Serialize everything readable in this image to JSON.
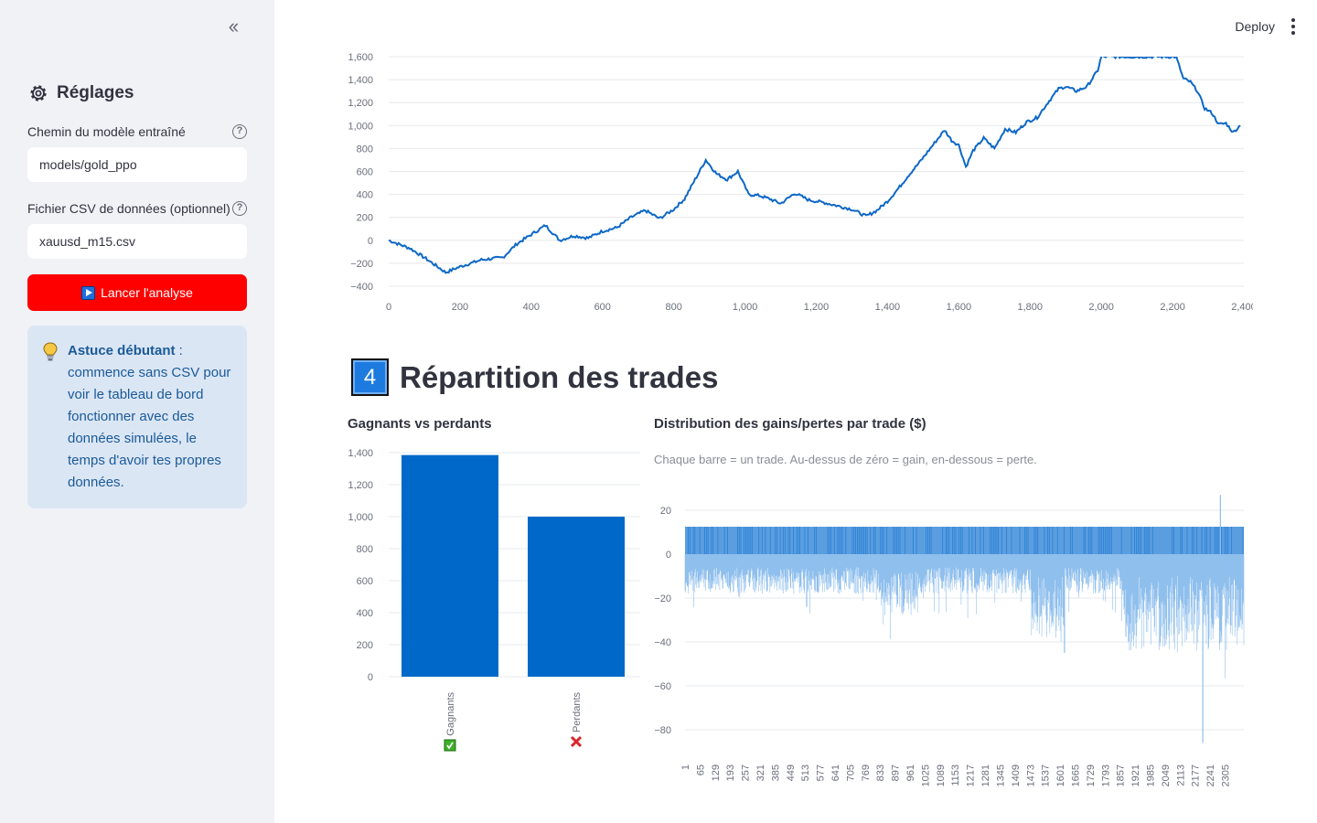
{
  "sidebar": {
    "title": "Réglages",
    "model_label": "Chemin du modèle entraîné",
    "model_value": "models/gold_ppo",
    "csv_label": "Fichier CSV de données (optionnel)",
    "csv_value": "xauusd_m15.csv",
    "run_button": "Lancer l'analyse",
    "tip_bold": "Astuce débutant",
    "tip_text": " : commence sans CSV pour voir le tableau de bord fonctionner avec des données simulées, le temps d'avoir tes propres données."
  },
  "topbar": {
    "deploy_label": "Deploy"
  },
  "section": {
    "number": "4",
    "title": "Répartition des trades"
  },
  "equity_chart": {
    "y_ticks": [
      "1,600",
      "1,400",
      "1,200",
      "1,000",
      "800",
      "600",
      "400",
      "200",
      "0",
      "−200",
      "−400"
    ],
    "x_ticks": [
      "0",
      "200",
      "400",
      "600",
      "800",
      "1,000",
      "1,200",
      "1,400",
      "1,600",
      "1,800",
      "2,000",
      "2,200",
      "2,400"
    ]
  },
  "win_loss": {
    "title": "Gagnants vs perdants",
    "y_ticks": [
      "1,400",
      "1,200",
      "1,000",
      "800",
      "600",
      "400",
      "200",
      "0"
    ],
    "categories": [
      "Gagnants",
      "Perdants"
    ]
  },
  "distribution": {
    "title": "Distribution des gains/pertes par trade ($)",
    "caption": "Chaque barre = un trade. Au-dessus de zéro = gain, en-dessous = perte.",
    "y_ticks": [
      "20",
      "0",
      "−20",
      "−40",
      "−60",
      "−80"
    ],
    "x_ticks": [
      "1",
      "65",
      "129",
      "193",
      "257",
      "321",
      "385",
      "449",
      "513",
      "577",
      "641",
      "705",
      "769",
      "833",
      "897",
      "961",
      "1025",
      "1089",
      "1153",
      "1217",
      "1281",
      "1345",
      "1409",
      "1473",
      "1537",
      "1601",
      "1665",
      "1729",
      "1793",
      "1857",
      "1921",
      "1985",
      "2049",
      "2113",
      "2177",
      "2241",
      "2305"
    ]
  },
  "chart_data": [
    {
      "type": "line",
      "title": "",
      "xlabel": "",
      "ylabel": "",
      "xlim": [
        0,
        2400
      ],
      "ylim": [
        -400,
        1600
      ],
      "series": [
        {
          "x": [
            0,
            60,
            100,
            160,
            200,
            260,
            320,
            360,
            400,
            440,
            480,
            520,
            560,
            600,
            640,
            680,
            720,
            760,
            800,
            830,
            860,
            890,
            920,
            950,
            980,
            1010,
            1040,
            1070,
            1100,
            1140,
            1180,
            1220,
            1260,
            1300,
            1340,
            1370,
            1400,
            1430,
            1460,
            1490,
            1520,
            1560,
            1580,
            1600,
            1620,
            1640,
            1670,
            1700,
            1730,
            1760,
            1790,
            1820,
            1850,
            1880,
            1900,
            1930,
            1960,
            1990,
            2000,
            2190,
            2210,
            2230,
            2250,
            2270,
            2290,
            2310,
            2330,
            2350,
            2370,
            2390
          ],
          "y": [
            0,
            -70,
            -150,
            -280,
            -230,
            -170,
            -150,
            -30,
            50,
            130,
            0,
            40,
            20,
            80,
            110,
            200,
            260,
            190,
            270,
            360,
            530,
            700,
            580,
            530,
            600,
            400,
            390,
            360,
            320,
            410,
            350,
            330,
            300,
            270,
            210,
            260,
            340,
            450,
            570,
            680,
            800,
            960,
            870,
            830,
            640,
            780,
            890,
            800,
            970,
            940,
            1030,
            1070,
            1200,
            1320,
            1340,
            1300,
            1340,
            1480,
            1600,
            1600,
            1600,
            1410,
            1380,
            1300,
            1150,
            1110,
            1010,
            1020,
            940,
            1000
          ]
        }
      ]
    },
    {
      "type": "bar",
      "title": "Gagnants vs perdants",
      "categories": [
        "Gagnants",
        "Perdants"
      ],
      "values": [
        1385,
        1000
      ],
      "ylim": [
        0,
        1400
      ]
    },
    {
      "type": "bar",
      "title": "Distribution des gains/pertes par trade ($)",
      "xlim": [
        1,
        2385
      ],
      "ylim": [
        -86,
        28
      ],
      "summary_values": {
        "typical_gain": 12.5,
        "max_gain": 27,
        "min_loss": -86
      }
    }
  ]
}
